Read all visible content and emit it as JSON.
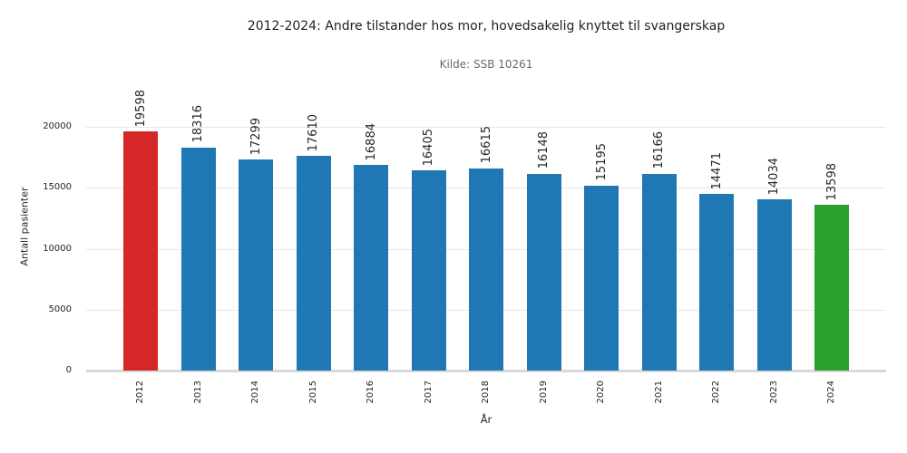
{
  "chart_data": {
    "type": "bar",
    "title": "2012-2024: Andre tilstander hos mor, hovedsakelig knyttet til svangerskap",
    "subtitle": "Kilde: SSB 10261",
    "xlabel": "År",
    "ylabel": "Antall pasienter",
    "categories": [
      "2012",
      "2013",
      "2014",
      "2015",
      "2016",
      "2017",
      "2018",
      "2019",
      "2020",
      "2021",
      "2022",
      "2023",
      "2024"
    ],
    "values": [
      19598,
      18316,
      17299,
      17610,
      16884,
      16405,
      16615,
      16148,
      15195,
      16166,
      14471,
      14034,
      13598
    ],
    "bar_colors": [
      "#d62728",
      "#1f77b4",
      "#1f77b4",
      "#1f77b4",
      "#1f77b4",
      "#1f77b4",
      "#1f77b4",
      "#1f77b4",
      "#1f77b4",
      "#1f77b4",
      "#1f77b4",
      "#1f77b4",
      "#2ca02c"
    ],
    "yticks": [
      0,
      5000,
      10000,
      15000,
      20000
    ],
    "ylim": [
      0,
      23720
    ],
    "grid": true,
    "legend": "none",
    "value_label_rotation": 90,
    "x_tick_rotation": 90,
    "colors": {
      "highlight_first": "#d62728",
      "default_bar": "#1f77b4",
      "highlight_last": "#2ca02c",
      "grid": "#e7e7e7",
      "axis_line": "#d9d9d9",
      "text": "#262626",
      "subtitle_text": "#6b6b6b"
    }
  }
}
